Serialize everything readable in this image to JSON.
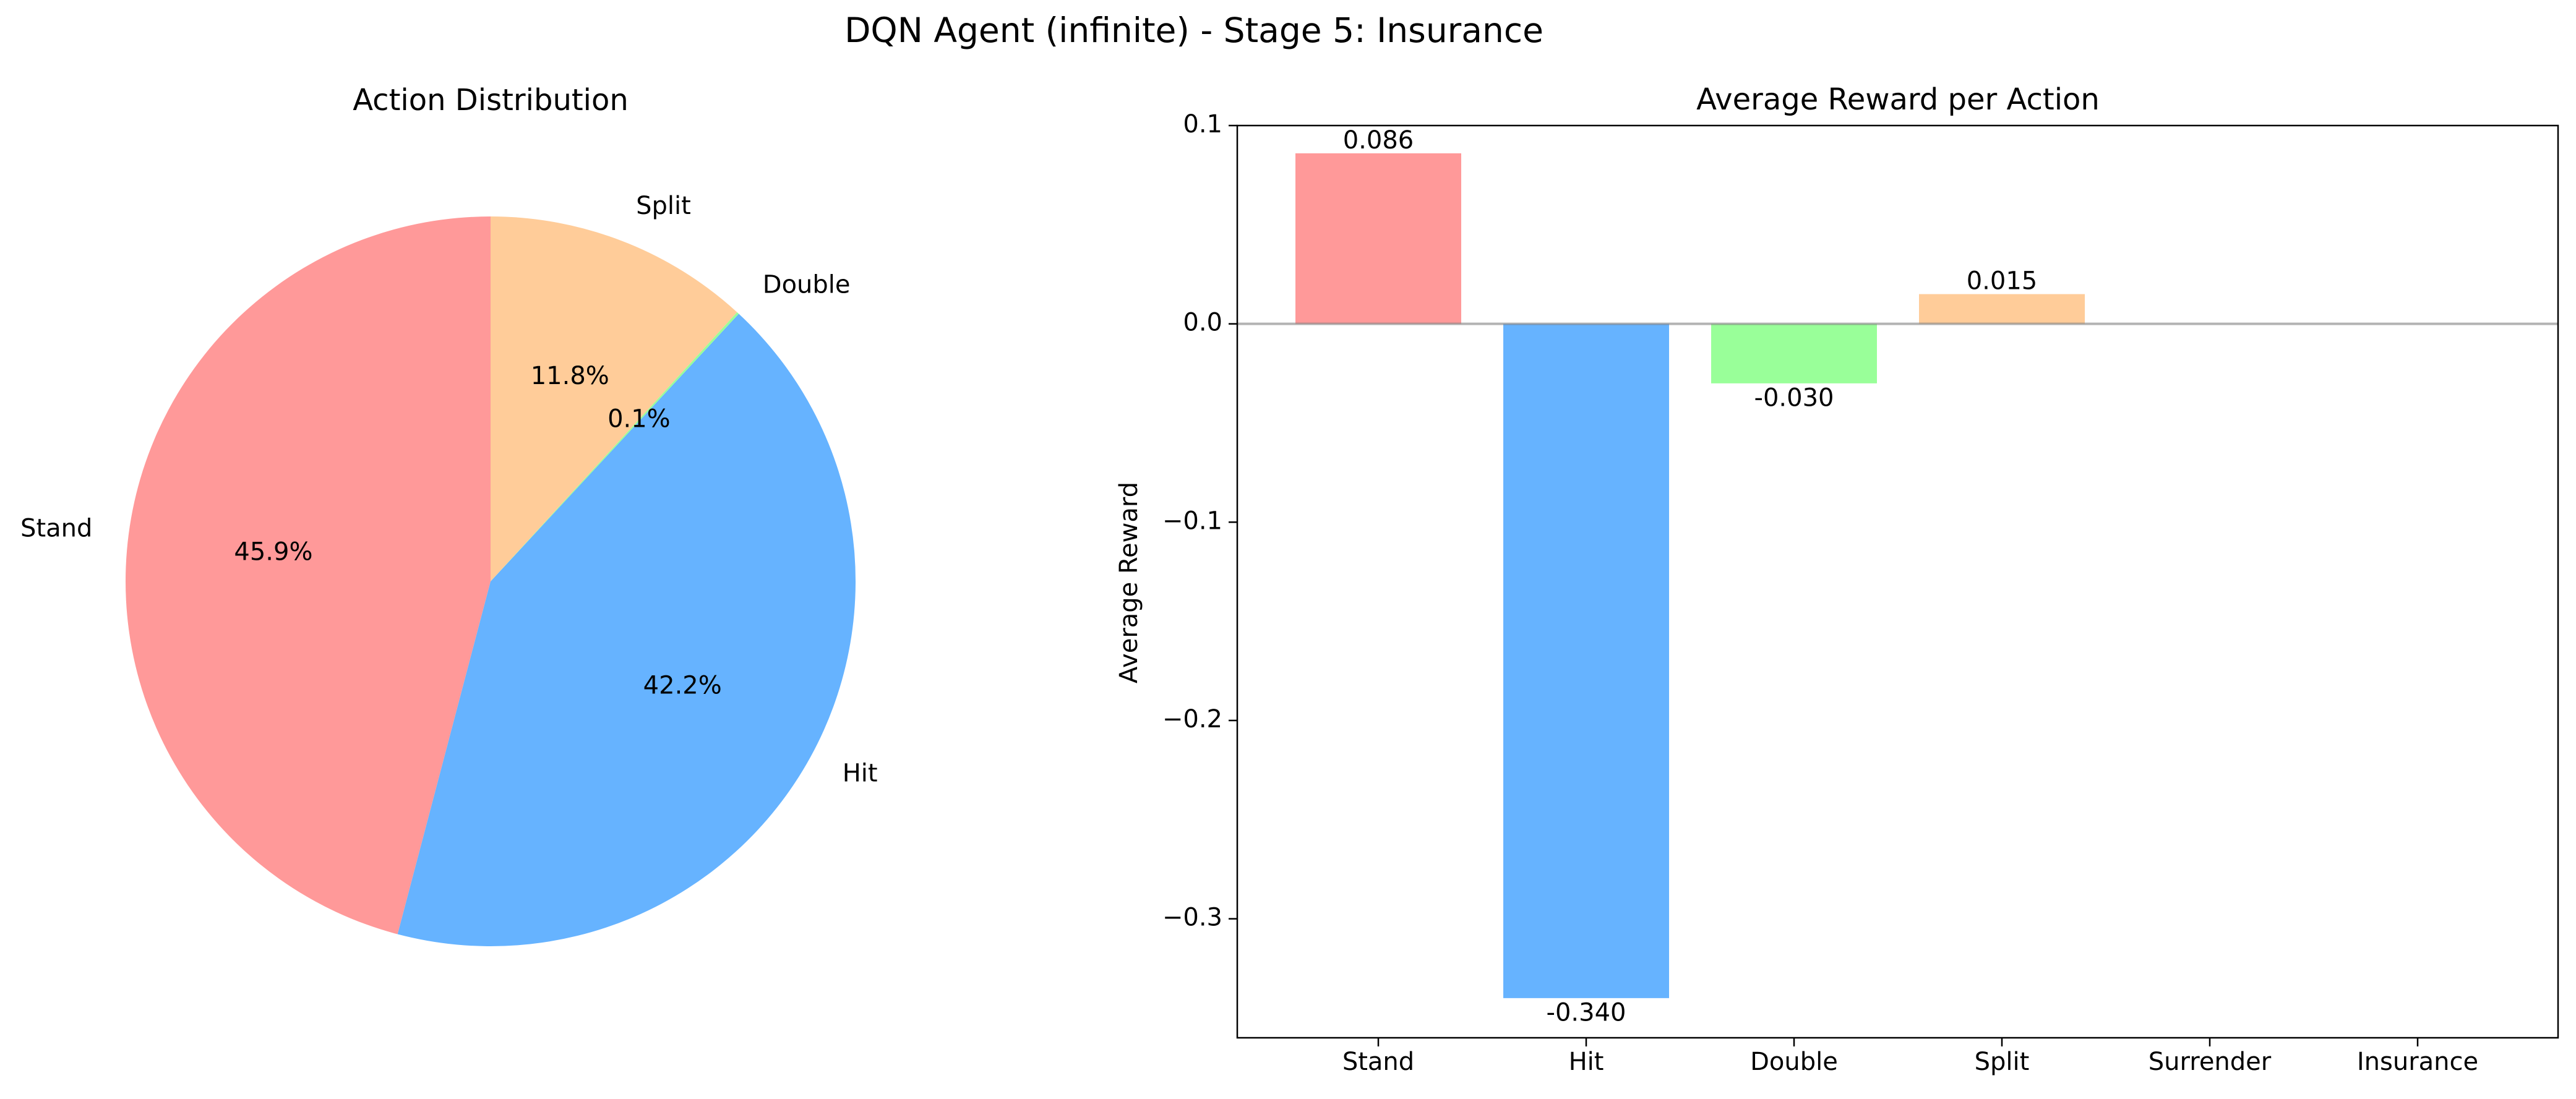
{
  "figure": {
    "title": "DQN Agent (infinite) - Stage 5: Insurance"
  },
  "chart_data": [
    {
      "type": "pie",
      "title": "Action Distribution",
      "categories": [
        "Stand",
        "Hit",
        "Double",
        "Split"
      ],
      "values": [
        45.9,
        42.2,
        0.1,
        11.8
      ],
      "labels": [
        "45.9%",
        "42.2%",
        "0.1%",
        "11.8%"
      ],
      "colors": [
        "#ff9999",
        "#66b3ff",
        "#99ff99",
        "#ffcc99"
      ],
      "start_angle_deg": 90,
      "direction": "counterclockwise"
    },
    {
      "type": "bar",
      "title": "Average Reward per Action",
      "xlabel": "",
      "ylabel": "Average Reward",
      "categories": [
        "Stand",
        "Hit",
        "Double",
        "Split",
        "Surrender",
        "Insurance"
      ],
      "values": [
        0.086,
        -0.34,
        -0.03,
        0.015,
        0,
        0
      ],
      "value_labels": [
        "0.086",
        "-0.340",
        "-0.030",
        "0.015",
        "",
        ""
      ],
      "colors": [
        "#ff9999",
        "#66b3ff",
        "#99ff99",
        "#ffcc99",
        "#ff99cc",
        "#c2c2f0"
      ],
      "ylim": [
        -0.36,
        0.1
      ],
      "yticks": [
        0.1,
        0.0,
        -0.1,
        -0.2,
        -0.3
      ],
      "ytick_labels": [
        "0.1",
        "0.0",
        "−0.1",
        "−0.2",
        "−0.3"
      ],
      "zero_line": true,
      "grid": false
    }
  ]
}
